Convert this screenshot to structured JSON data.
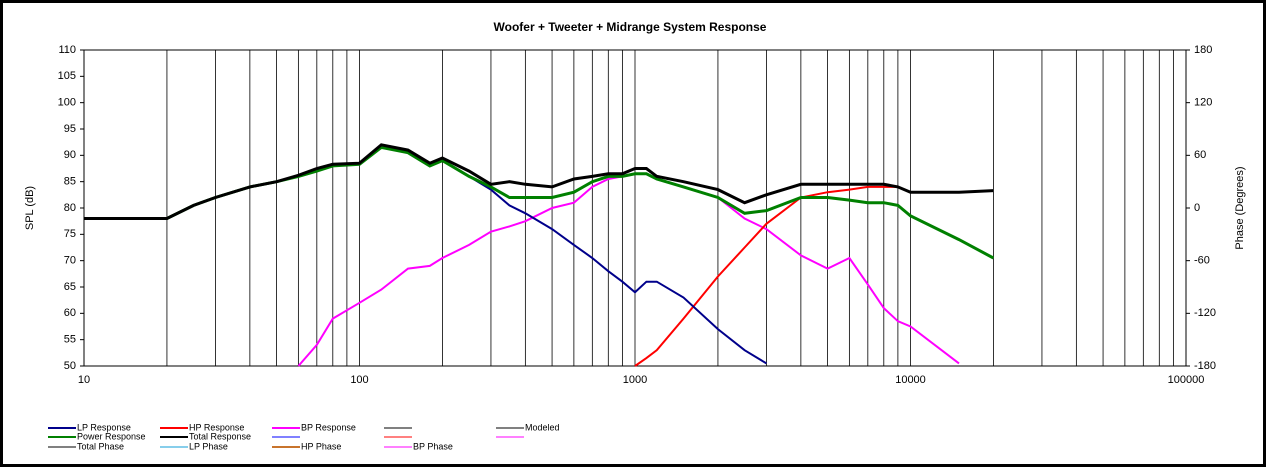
{
  "chart_data": {
    "type": "line",
    "title": "Woofer + Tweeter + Midrange  System Response",
    "y_label": "SPL (dB)",
    "y2_label": "Phase (Degrees)",
    "log_x": true,
    "grid": true,
    "xlim": [
      10,
      100000
    ],
    "xticks": [
      10,
      100,
      1000,
      10000,
      100000
    ],
    "xminor": [
      20,
      30,
      40,
      50,
      60,
      70,
      80,
      90,
      200,
      300,
      400,
      500,
      600,
      700,
      800,
      900,
      2000,
      3000,
      4000,
      5000,
      6000,
      7000,
      8000,
      9000,
      20000,
      30000,
      40000,
      50000,
      60000,
      70000,
      80000,
      90000
    ],
    "ylim": [
      50,
      110
    ],
    "yticks": [
      50,
      55,
      60,
      65,
      70,
      75,
      80,
      85,
      90,
      95,
      100,
      105,
      110
    ],
    "y2lim": [
      -180,
      180
    ],
    "y2ticks": [
      -180,
      -120,
      -60,
      0,
      60,
      120,
      180
    ],
    "x": [
      10,
      20,
      25,
      30,
      40,
      50,
      60,
      70,
      80,
      100,
      120,
      150,
      180,
      200,
      250,
      300,
      350,
      400,
      500,
      600,
      700,
      800,
      900,
      1000,
      1100,
      1200,
      1500,
      2000,
      2500,
      3000,
      4000,
      5000,
      6000,
      7000,
      8000,
      9000,
      10000,
      15000,
      20000
    ],
    "series": [
      {
        "name": "LP Response",
        "color": "#00008b",
        "values": [
          78,
          78,
          80.5,
          82,
          84,
          85,
          86,
          87,
          88,
          88.3,
          91.5,
          90.5,
          88,
          89,
          86,
          83.5,
          80.5,
          79,
          76,
          73,
          70.5,
          68,
          66,
          64,
          66,
          66,
          63,
          57,
          53,
          50.5,
          null,
          null,
          null,
          null,
          null,
          null,
          null,
          null,
          null
        ]
      },
      {
        "name": "HP Response",
        "color": "#ff0000",
        "values": [
          null,
          null,
          null,
          null,
          null,
          null,
          null,
          null,
          null,
          null,
          null,
          null,
          null,
          null,
          null,
          null,
          null,
          null,
          null,
          null,
          null,
          null,
          null,
          50,
          51.5,
          53,
          59,
          67,
          72.5,
          77,
          82,
          83,
          83.5,
          84,
          84,
          84,
          83,
          83,
          null
        ]
      },
      {
        "name": "BP Response",
        "color": "#ff00ff",
        "values": [
          null,
          null,
          null,
          null,
          null,
          null,
          50,
          54,
          59,
          62,
          64.5,
          68.5,
          69,
          70.5,
          73,
          75.5,
          76.5,
          77.5,
          80,
          81,
          84,
          85.5,
          86,
          86.5,
          86.5,
          85.5,
          84,
          82,
          78,
          76,
          71,
          68.5,
          70.5,
          65.5,
          61,
          58.5,
          57.5,
          50.5,
          null
        ]
      },
      {
        "name": "Power Response",
        "color": "#008000",
        "values": [
          78,
          78,
          80.5,
          82,
          84,
          85,
          86,
          87,
          88,
          88.3,
          91.5,
          90.5,
          88,
          89,
          86,
          84,
          82,
          82,
          82,
          83,
          85,
          86,
          86,
          86.5,
          86.5,
          85.5,
          84,
          82,
          79,
          79.5,
          82,
          82,
          81.5,
          81,
          81,
          80.5,
          78.5,
          74,
          70.5
        ]
      },
      {
        "name": "Total Response",
        "color": "#000000",
        "values": [
          78,
          78,
          80.5,
          82,
          84,
          85,
          86.2,
          87.5,
          88.3,
          88.5,
          92,
          91,
          88.5,
          89.5,
          87,
          84.5,
          85,
          84.5,
          84,
          85.5,
          86,
          86.5,
          86.5,
          87.5,
          87.5,
          86,
          85,
          83.5,
          81,
          82.5,
          84.5,
          84.5,
          84.5,
          84.5,
          84.5,
          84,
          83,
          83,
          83.3
        ]
      }
    ],
    "legend_only": [
      {
        "name": "Modeled",
        "color": "#808080"
      },
      {
        "name": "Total Phase",
        "color": "#808080"
      },
      {
        "name": "LP Phase",
        "color": "#87ceeb"
      },
      {
        "name": "HP Phase",
        "color": "#c8742c"
      },
      {
        "name": "BP Phase",
        "color": "#ff80ff"
      }
    ]
  }
}
